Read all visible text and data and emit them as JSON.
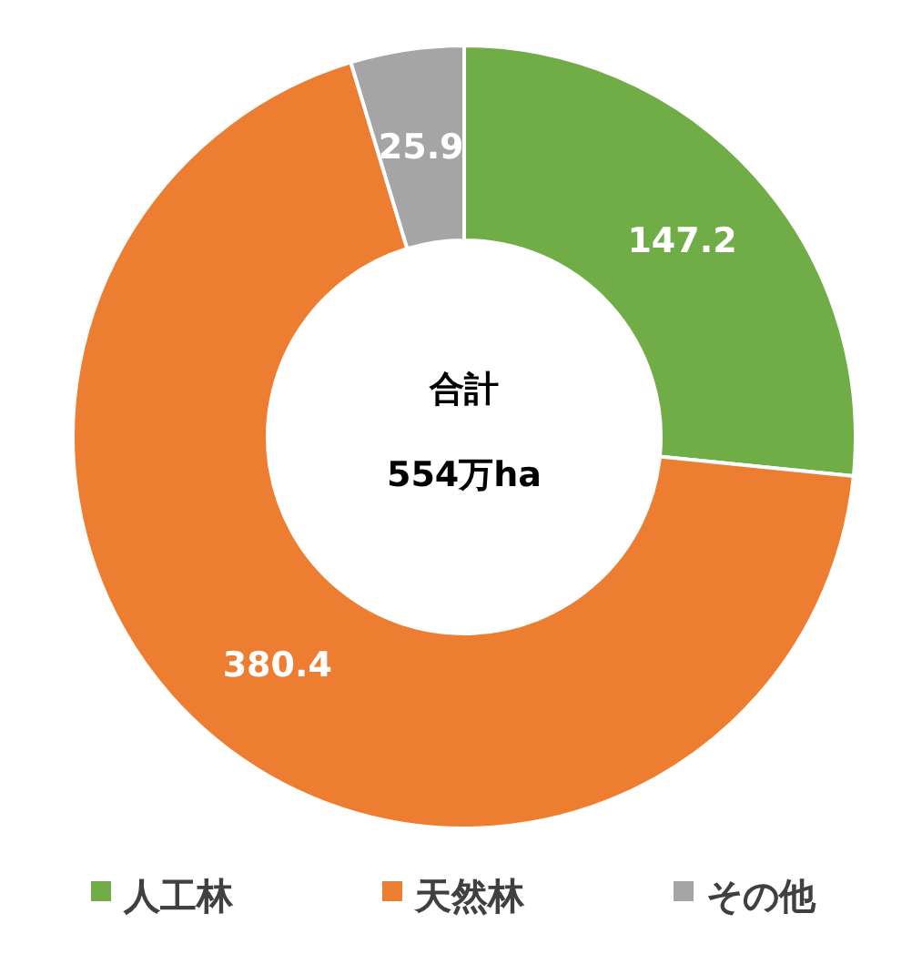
{
  "chart_data": {
    "type": "donut",
    "categories": [
      "人工林",
      "天然林",
      "その他"
    ],
    "values": [
      147.2,
      380.4,
      25.9
    ],
    "colors": [
      "#70ad47",
      "#ed7d31",
      "#a5a5a5"
    ],
    "data_labels": true,
    "legend": "bottom",
    "annotations": [
      "合計",
      "554万ha"
    ]
  }
}
